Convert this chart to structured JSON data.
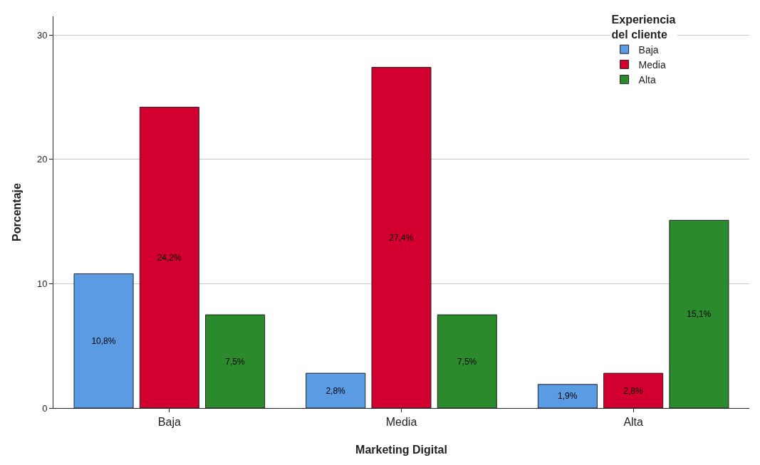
{
  "chart_data": {
    "type": "bar",
    "xlabel": "Marketing Digital",
    "ylabel": "Porcentaje",
    "legend_title": "Experiencia del cliente",
    "categories": [
      "Baja",
      "Media",
      "Alta"
    ],
    "series": [
      {
        "name": "Baja",
        "color": "#5b9be4",
        "values": [
          10.8,
          2.8,
          1.9
        ],
        "value_labels": [
          "10,8%",
          "2,8%",
          "1,9%"
        ]
      },
      {
        "name": "Media",
        "color": "#d3002f",
        "values": [
          24.2,
          27.4,
          2.8
        ],
        "value_labels": [
          "24,2%",
          "27,4%",
          "2,8%"
        ]
      },
      {
        "name": "Alta",
        "color": "#2b8a2b",
        "values": [
          7.5,
          7.5,
          15.1
        ],
        "value_labels": [
          "7,5%",
          "7,5%",
          "15,1%"
        ]
      }
    ],
    "ylim": [
      0,
      31.5
    ],
    "yticks": [
      0,
      10,
      20,
      30
    ],
    "grid": "y",
    "legend": "top right"
  }
}
